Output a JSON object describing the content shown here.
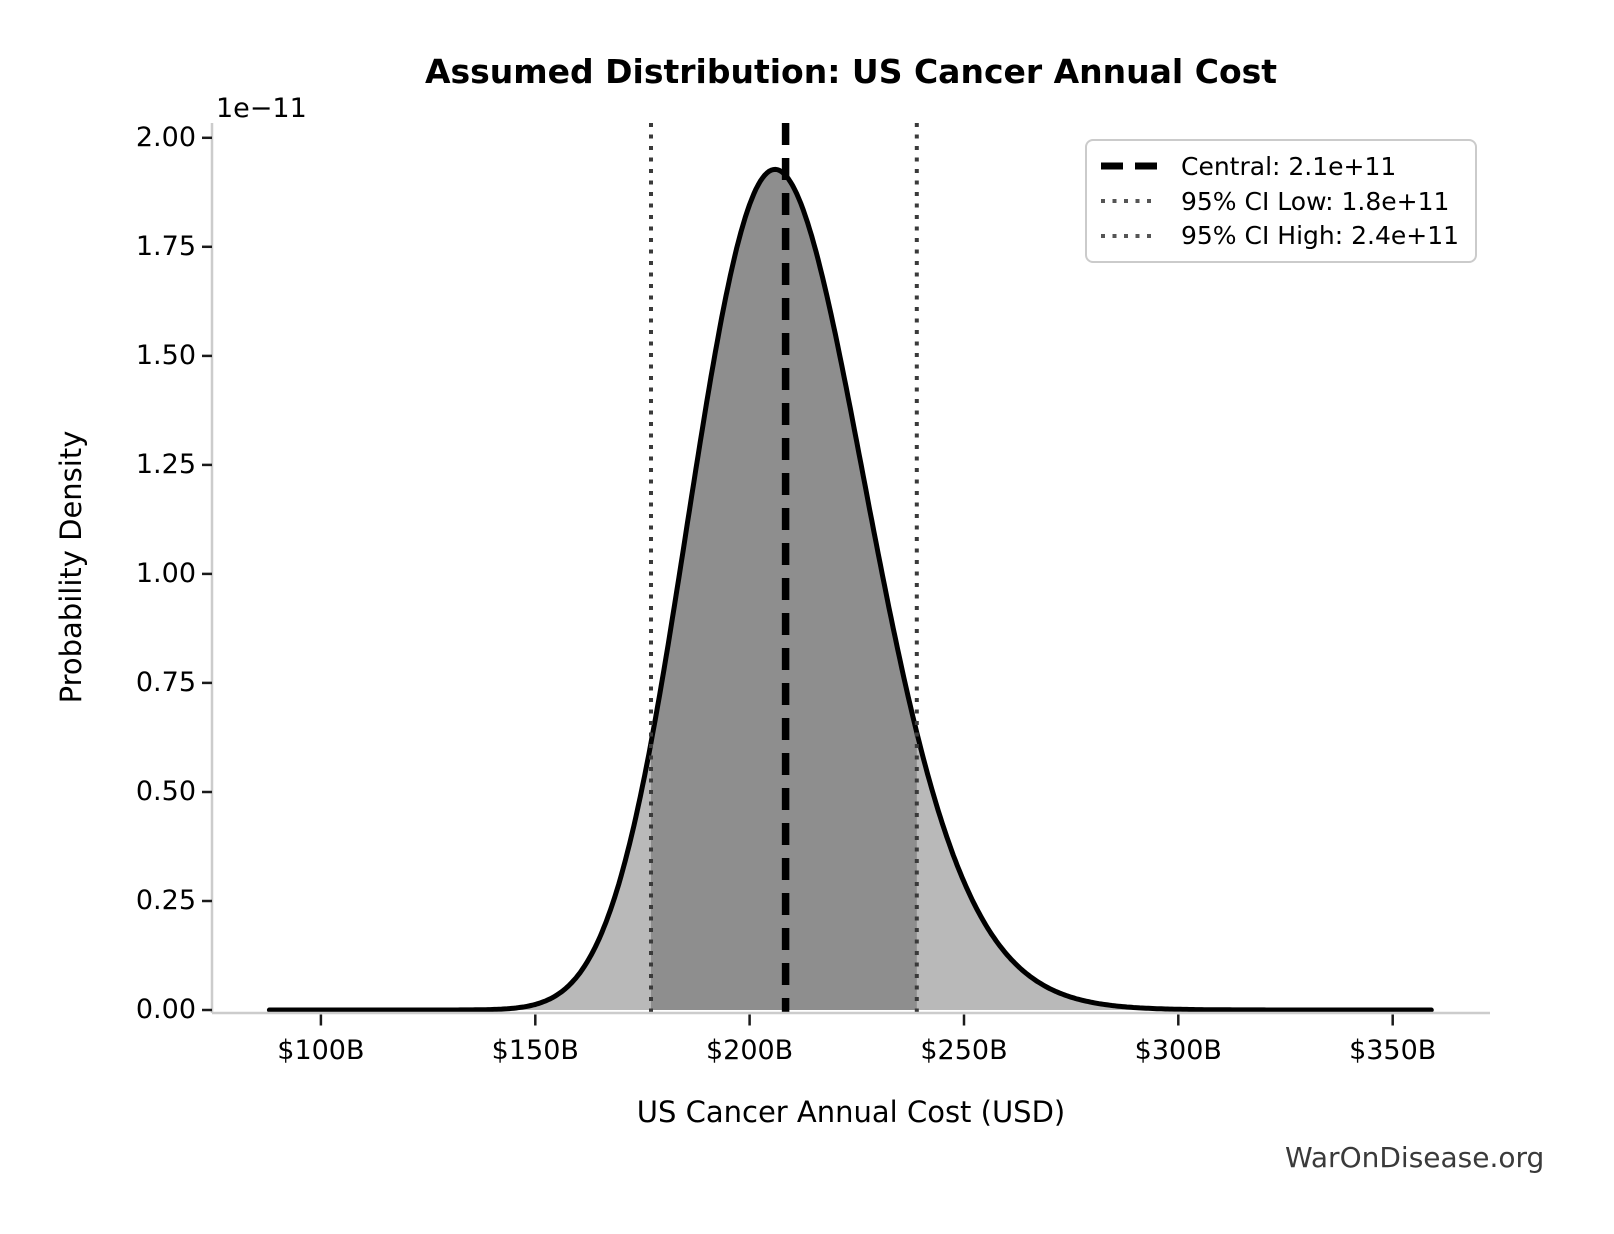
{
  "chart_data": {
    "type": "area",
    "title": "Assumed Distribution: US Cancer Annual Cost",
    "xlabel": "US Cancer Annual Cost (USD)",
    "ylabel": "Probability Density",
    "y_offset_label": "1e−11",
    "grid": false,
    "legend_position": "upper right",
    "x_ticks": [
      {
        "label": "$100B",
        "value_b": 100
      },
      {
        "label": "$150B",
        "value_b": 150
      },
      {
        "label": "$200B",
        "value_b": 200
      },
      {
        "label": "$250B",
        "value_b": 250
      },
      {
        "label": "$300B",
        "value_b": 300
      },
      {
        "label": "$350B",
        "value_b": 350
      }
    ],
    "y_ticks": [
      {
        "label": "0.00",
        "value_e11": 0.0
      },
      {
        "label": "0.25",
        "value_e11": 0.25
      },
      {
        "label": "0.50",
        "value_e11": 0.5
      },
      {
        "label": "0.75",
        "value_e11": 0.75
      },
      {
        "label": "1.00",
        "value_e11": 1.0
      },
      {
        "label": "1.25",
        "value_e11": 1.25
      },
      {
        "label": "1.50",
        "value_e11": 1.5
      },
      {
        "label": "1.75",
        "value_e11": 1.75
      },
      {
        "label": "2.00",
        "value_e11": 2.0
      }
    ],
    "xlim_b": [
      74.6,
      372.7
    ],
    "ylim_e11": [
      0,
      2.034
    ],
    "distribution": {
      "kind": "lognormal",
      "median_b": 208,
      "sigma_log": 0.1,
      "peak_density_e11": 1.93,
      "x_range_b": [
        88,
        359
      ]
    },
    "lines": {
      "central": {
        "label": "Central: 2.1e+11",
        "value": "2.1e+11",
        "value_b": 208.4,
        "style": "dashed",
        "color": "#000000"
      },
      "ci_low": {
        "label": "95% CI Low: 1.8e+11",
        "value": "1.8e+11",
        "value_b": 177.0,
        "style": "dotted",
        "color": "#3a3a3a"
      },
      "ci_high": {
        "label": "95% CI High: 2.4e+11",
        "value": "2.4e+11",
        "value_b": 239.0,
        "style": "dotted",
        "color": "#3a3a3a"
      }
    },
    "colors": {
      "curve": "#000000",
      "fill_outer": "#b9b9b9",
      "fill_inner": "#8e8e8e",
      "spine": "#cccccc",
      "tick_mark": "#1a1a1a",
      "text": "#000000"
    }
  },
  "watermark": {
    "text": "WarOnDisease.org",
    "color": "#3a3a3a"
  }
}
